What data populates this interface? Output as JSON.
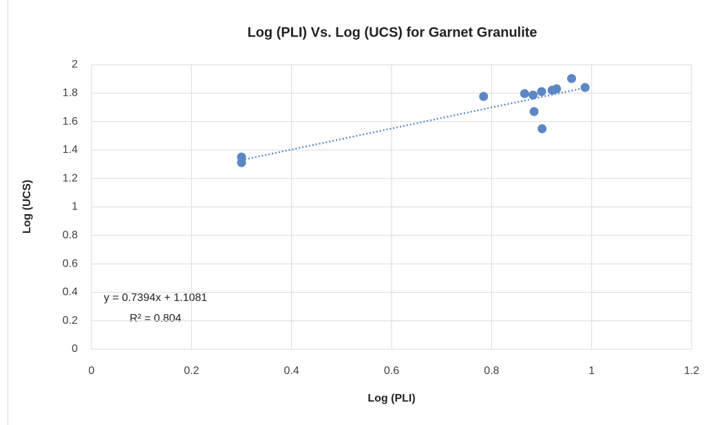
{
  "chart_data": {
    "type": "scatter",
    "title": "Log (PLI) Vs. Log (UCS) for Garnet Granulite",
    "x_label": "Log (PLI)",
    "y_label": "Log (UCS)",
    "x": [
      0.3,
      0.3,
      0.784,
      0.866,
      0.883,
      0.9,
      0.885,
      0.901,
      0.921,
      0.93,
      0.96,
      0.987
    ],
    "values": [
      1.351,
      1.312,
      1.777,
      1.797,
      1.787,
      1.811,
      1.671,
      1.55,
      1.821,
      1.831,
      1.903,
      1.84
    ],
    "color": "#5b87c5",
    "xlim": [
      0,
      1.2
    ],
    "xticks": [
      0,
      0.2,
      0.4,
      0.6,
      0.8,
      1,
      1.2
    ],
    "ylim": [
      0,
      2
    ],
    "yticks": [
      0,
      0.2,
      0.4,
      0.6,
      0.8,
      1,
      1.2,
      1.4,
      1.6,
      1.8,
      2
    ],
    "grid": true,
    "trendline": {
      "slope": 0.7394,
      "intercept": 1.1081,
      "equation": "y = 0.7394x + 1.1081",
      "r_squared": "R² = 0.804"
    }
  }
}
